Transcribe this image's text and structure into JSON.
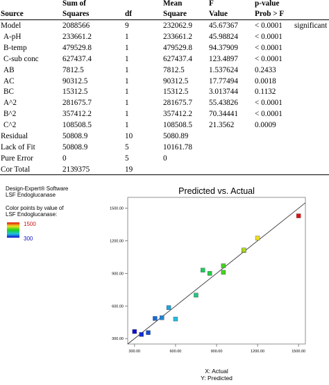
{
  "table": {
    "headers": [
      {
        "line1": "",
        "line2": "Source"
      },
      {
        "line1": "Sum of",
        "line2": "Squares"
      },
      {
        "line1": "",
        "line2": "df"
      },
      {
        "line1": "Mean",
        "line2": "Square"
      },
      {
        "line1": "F",
        "line2": "Value"
      },
      {
        "line1": "p-value",
        "line2": "Prob > F"
      }
    ],
    "rows": [
      {
        "source": "Model",
        "ss": "2088566",
        "df": "9",
        "ms": "232062.9",
        "f": "45.67367",
        "p": "< 0.0001",
        "note": "significant"
      },
      {
        "source": "A-pH",
        "ss": "233661.2",
        "df": "1",
        "ms": "233661.2",
        "f": "45.98824",
        "p": "< 0.0001",
        "note": ""
      },
      {
        "source": "B-temp",
        "ss": "479529.8",
        "df": "1",
        "ms": "479529.8",
        "f": "94.37909",
        "p": "< 0.0001",
        "note": ""
      },
      {
        "source": "C-sub conc",
        "ss": "627437.4",
        "df": "1",
        "ms": "627437.4",
        "f": "123.4897",
        "p": "< 0.0001",
        "note": ""
      },
      {
        "source": "AB",
        "ss": "7812.5",
        "df": "1",
        "ms": "7812.5",
        "f": "1.537624",
        "p": "0.2433",
        "note": ""
      },
      {
        "source": "AC",
        "ss": "90312.5",
        "df": "1",
        "ms": "90312.5",
        "f": "17.77494",
        "p": "0.0018",
        "note": ""
      },
      {
        "source": "BC",
        "ss": "15312.5",
        "df": "1",
        "ms": "15312.5",
        "f": "3.013744",
        "p": "0.1132",
        "note": ""
      },
      {
        "source": "A^2",
        "ss": "281675.7",
        "df": "1",
        "ms": "281675.7",
        "f": "55.43826",
        "p": "< 0.0001",
        "note": ""
      },
      {
        "source": "B^2",
        "ss": "357412.2",
        "df": "1",
        "ms": "357412.2",
        "f": "70.34441",
        "p": "< 0.0001",
        "note": ""
      },
      {
        "source": "C^2",
        "ss": "108508.5",
        "df": "1",
        "ms": "108508.5",
        "f": "21.3562",
        "p": "0.0009",
        "note": ""
      },
      {
        "source": "Residual",
        "ss": "50808.9",
        "df": "10",
        "ms": "5080.89",
        "f": "",
        "p": "",
        "note": ""
      },
      {
        "source": "Lack of Fit",
        "ss": "50808.9",
        "df": "5",
        "ms": "10161.78",
        "f": "",
        "p": "",
        "note": ""
      },
      {
        "source": "Pure Error",
        "ss": "0",
        "df": "5",
        "ms": "0",
        "f": "",
        "p": "",
        "note": ""
      },
      {
        "source": "Cor Total",
        "ss": "2139375",
        "df": "19",
        "ms": "",
        "f": "",
        "p": "",
        "note": ""
      }
    ]
  },
  "legend": {
    "software": "Design-Expert® Software",
    "response": "LSF Endoglucanase",
    "color_note_1": "Color points by value of",
    "color_note_2": "LSF Endoglucanase:",
    "max_value": "1500",
    "min_value": "300"
  },
  "chart_data": {
    "type": "scatter",
    "title": "Predicted vs. Actual",
    "xlabel": "X: Actual",
    "ylabel": "Y: Predicted",
    "xlim": [
      250,
      1550
    ],
    "ylim": [
      250,
      1600
    ],
    "x_ticks": [
      "300.00",
      "600.00",
      "900.00",
      "1200.00",
      "1500.00"
    ],
    "y_ticks": [
      "300.00",
      "600.00",
      "900.00",
      "1200.00",
      "1500.00"
    ],
    "reference_line": "y = x",
    "color_scale": {
      "min": 300,
      "max": 1500
    },
    "points": [
      {
        "actual": 300,
        "predicted": 365
      },
      {
        "actual": 350,
        "predicted": 338
      },
      {
        "actual": 400,
        "predicted": 355
      },
      {
        "actual": 450,
        "predicted": 485
      },
      {
        "actual": 500,
        "predicted": 492
      },
      {
        "actual": 550,
        "predicted": 585
      },
      {
        "actual": 600,
        "predicted": 480
      },
      {
        "actual": 750,
        "predicted": 700
      },
      {
        "actual": 800,
        "predicted": 930
      },
      {
        "actual": 850,
        "predicted": 900
      },
      {
        "actual": 950,
        "predicted": 910
      },
      {
        "actual": 950,
        "predicted": 970
      },
      {
        "actual": 1100,
        "predicted": 1110
      },
      {
        "actual": 1100,
        "predicted": 1115
      },
      {
        "actual": 1200,
        "predicted": 1225
      },
      {
        "actual": 1500,
        "predicted": 1430
      }
    ]
  }
}
